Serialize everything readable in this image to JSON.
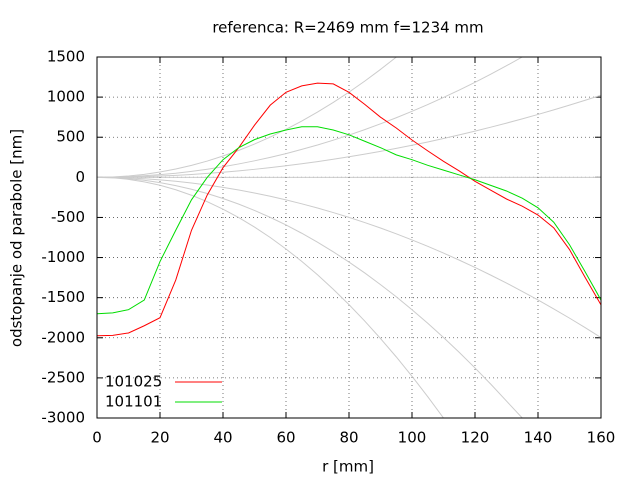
{
  "chart_data": {
    "type": "line",
    "title": "referenca:  R=2469 mm  f=1234 mm",
    "xlabel": "r [mm]",
    "ylabel": "odstopanje od parabole [nm]",
    "x": [
      0,
      5,
      10,
      15,
      20,
      25,
      30,
      35,
      40,
      45,
      50,
      55,
      60,
      65,
      70,
      75,
      80,
      85,
      90,
      95,
      100,
      105,
      110,
      115,
      120,
      125,
      130,
      135,
      140,
      145,
      150,
      155,
      160
    ],
    "series": [
      {
        "name": "101025",
        "color": "#ff0000",
        "values": [
          -1975,
          -1970,
          -1940,
          -1850,
          -1750,
          -1280,
          -660,
          -220,
          120,
          370,
          650,
          900,
          1060,
          1140,
          1175,
          1165,
          1060,
          910,
          750,
          615,
          465,
          330,
          200,
          80,
          -50,
          -160,
          -270,
          -360,
          -470,
          -630,
          -900,
          -1250,
          -1590
        ]
      },
      {
        "name": "101101",
        "color": "#00dd00",
        "values": [
          -1700,
          -1690,
          -1650,
          -1530,
          -1050,
          -660,
          -280,
          0,
          220,
          370,
          470,
          540,
          590,
          630,
          630,
          590,
          530,
          450,
          370,
          280,
          220,
          150,
          90,
          30,
          -30,
          -100,
          -170,
          -260,
          -380,
          -560,
          -840,
          -1180,
          -1530
        ]
      },
      {
        "color": "#cccccc",
        "values": [
          0,
          4,
          17,
          37,
          66,
          104,
          149,
          203,
          266,
          336,
          415,
          502,
          598,
          701,
          813,
          934,
          1062,
          1199,
          1345,
          1498,
          null,
          null,
          null,
          null,
          null,
          null,
          null,
          null,
          null,
          null,
          null,
          null,
          null
        ]
      },
      {
        "color": "#cccccc",
        "values": [
          0,
          2,
          8,
          19,
          33,
          51,
          74,
          101,
          132,
          167,
          206,
          249,
          296,
          348,
          403,
          463,
          527,
          595,
          667,
          743,
          823,
          907,
          996,
          1088,
          1185,
          1286,
          1391,
          1500,
          null,
          null,
          null,
          null,
          null
        ]
      },
      {
        "color": "#cccccc",
        "values": [
          0,
          1,
          4,
          9,
          16,
          25,
          36,
          49,
          64,
          81,
          100,
          121,
          144,
          169,
          196,
          225,
          256,
          289,
          324,
          361,
          400,
          441,
          484,
          529,
          576,
          625,
          676,
          729,
          784,
          841,
          900,
          961,
          1024
        ]
      },
      {
        "color": "#cccccc",
        "values": [
          0,
          -2,
          -8,
          -18,
          -31,
          -49,
          -70,
          -96,
          -125,
          -158,
          -195,
          -236,
          -281,
          -330,
          -382,
          -439,
          -499,
          -564,
          -632,
          -704,
          -780,
          -860,
          -944,
          -1032,
          -1123,
          -1219,
          -1318,
          -1422,
          -1529,
          -1640,
          -1755,
          -1874,
          -1997
        ]
      },
      {
        "color": "#cccccc",
        "values": [
          0,
          -4,
          -17,
          -37,
          -66,
          -103,
          -149,
          -202,
          -264,
          -334,
          -413,
          -499,
          -594,
          -697,
          -809,
          -928,
          -1056,
          -1192,
          -1337,
          -1489,
          -1650,
          -1819,
          -1997,
          -2182,
          -2376,
          -2578,
          -2789,
          -3000,
          null,
          null,
          null,
          null,
          null
        ]
      },
      {
        "color": "#cccccc",
        "values": [
          0,
          -6,
          -25,
          -56,
          -99,
          -155,
          -223,
          -304,
          -397,
          -502,
          -620,
          -750,
          -893,
          -1048,
          -1215,
          -1395,
          -1587,
          -1792,
          -2009,
          -2238,
          -2480,
          -2734,
          -3000,
          null,
          null,
          null,
          null,
          null,
          null,
          null,
          null,
          null,
          null
        ]
      }
    ],
    "xlim": [
      0,
      160
    ],
    "xticks": [
      0,
      20,
      40,
      60,
      80,
      100,
      120,
      140,
      160
    ],
    "ylim": [
      -3000,
      1500
    ],
    "yticks": [
      -3000,
      -2500,
      -2000,
      -1500,
      -1000,
      -500,
      0,
      500,
      1000,
      1500
    ],
    "grid": true,
    "legend": "lower left"
  }
}
